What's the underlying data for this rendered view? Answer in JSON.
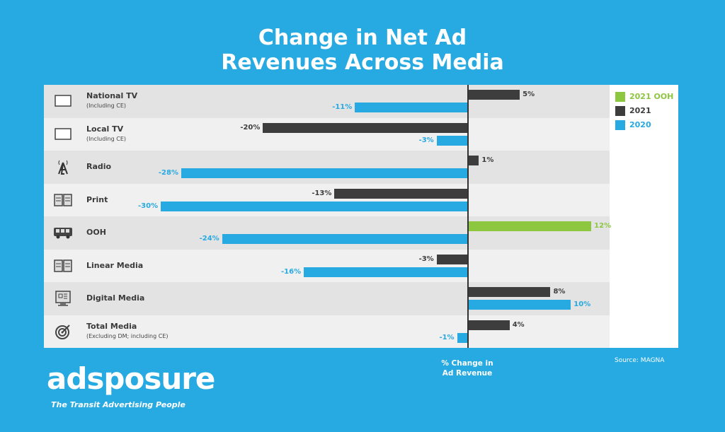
{
  "chart_data": {
    "type": "bar",
    "orientation": "horizontal",
    "title": "Change in Net Ad Revenues Across Media",
    "xlabel": "% Change in Ad Revenue",
    "xlim": [
      -30,
      13
    ],
    "grid": false,
    "legend_position": "right",
    "categories": [
      {
        "label": "National TV",
        "sublabel": "(Including CE)",
        "icon": "tv-icon"
      },
      {
        "label": "Local TV",
        "sublabel": "(Including CE)",
        "icon": "tv-icon"
      },
      {
        "label": "Radio",
        "sublabel": "",
        "icon": "radio-tower-icon"
      },
      {
        "label": "Print",
        "sublabel": "",
        "icon": "newspaper-icon"
      },
      {
        "label": "OOH",
        "sublabel": "",
        "icon": "bus-icon"
      },
      {
        "label": "Linear Media",
        "sublabel": "",
        "icon": "newspaper-icon"
      },
      {
        "label": "Digital Media",
        "sublabel": "",
        "icon": "computer-icon"
      },
      {
        "label": "Total Media",
        "sublabel": "(Excluding DM; including CE)",
        "icon": "target-icon"
      }
    ],
    "series": [
      {
        "name": "2021",
        "color": "#3d3d3d",
        "values": [
          5,
          -20,
          1,
          -13,
          null,
          -3,
          8,
          4
        ],
        "labels": [
          "5%",
          "-20%",
          "1%",
          "-13%",
          null,
          "-3%",
          "8%",
          "4%"
        ]
      },
      {
        "name": "2021 OOH",
        "color": "#8dc63f",
        "values": [
          null,
          null,
          null,
          null,
          12,
          null,
          null,
          null
        ],
        "labels": [
          null,
          null,
          null,
          null,
          "12%",
          null,
          null,
          null
        ]
      },
      {
        "name": "2020",
        "color": "#27a9e1",
        "values": [
          -11,
          -3,
          -28,
          -30,
          -24,
          -16,
          10,
          -1
        ],
        "labels": [
          "-11%",
          "-3%",
          "-28%",
          "-30%",
          "-24%",
          "-16%",
          "10%",
          "-1%"
        ]
      }
    ],
    "legend": [
      {
        "name": "2021 OOH",
        "color": "#8dc63f"
      },
      {
        "name": "2021",
        "color": "#3d3d3d"
      },
      {
        "name": "2020",
        "color": "#27a9e1"
      }
    ]
  },
  "xlabel_lines": [
    "% Change in",
    "Ad Revenue"
  ],
  "title_lines": [
    "Change in Net Ad",
    "Revenues Across Media"
  ],
  "source": "Source: MAGNA",
  "logo": {
    "text": "adsposure",
    "tagline": "The Transit Advertising People"
  }
}
